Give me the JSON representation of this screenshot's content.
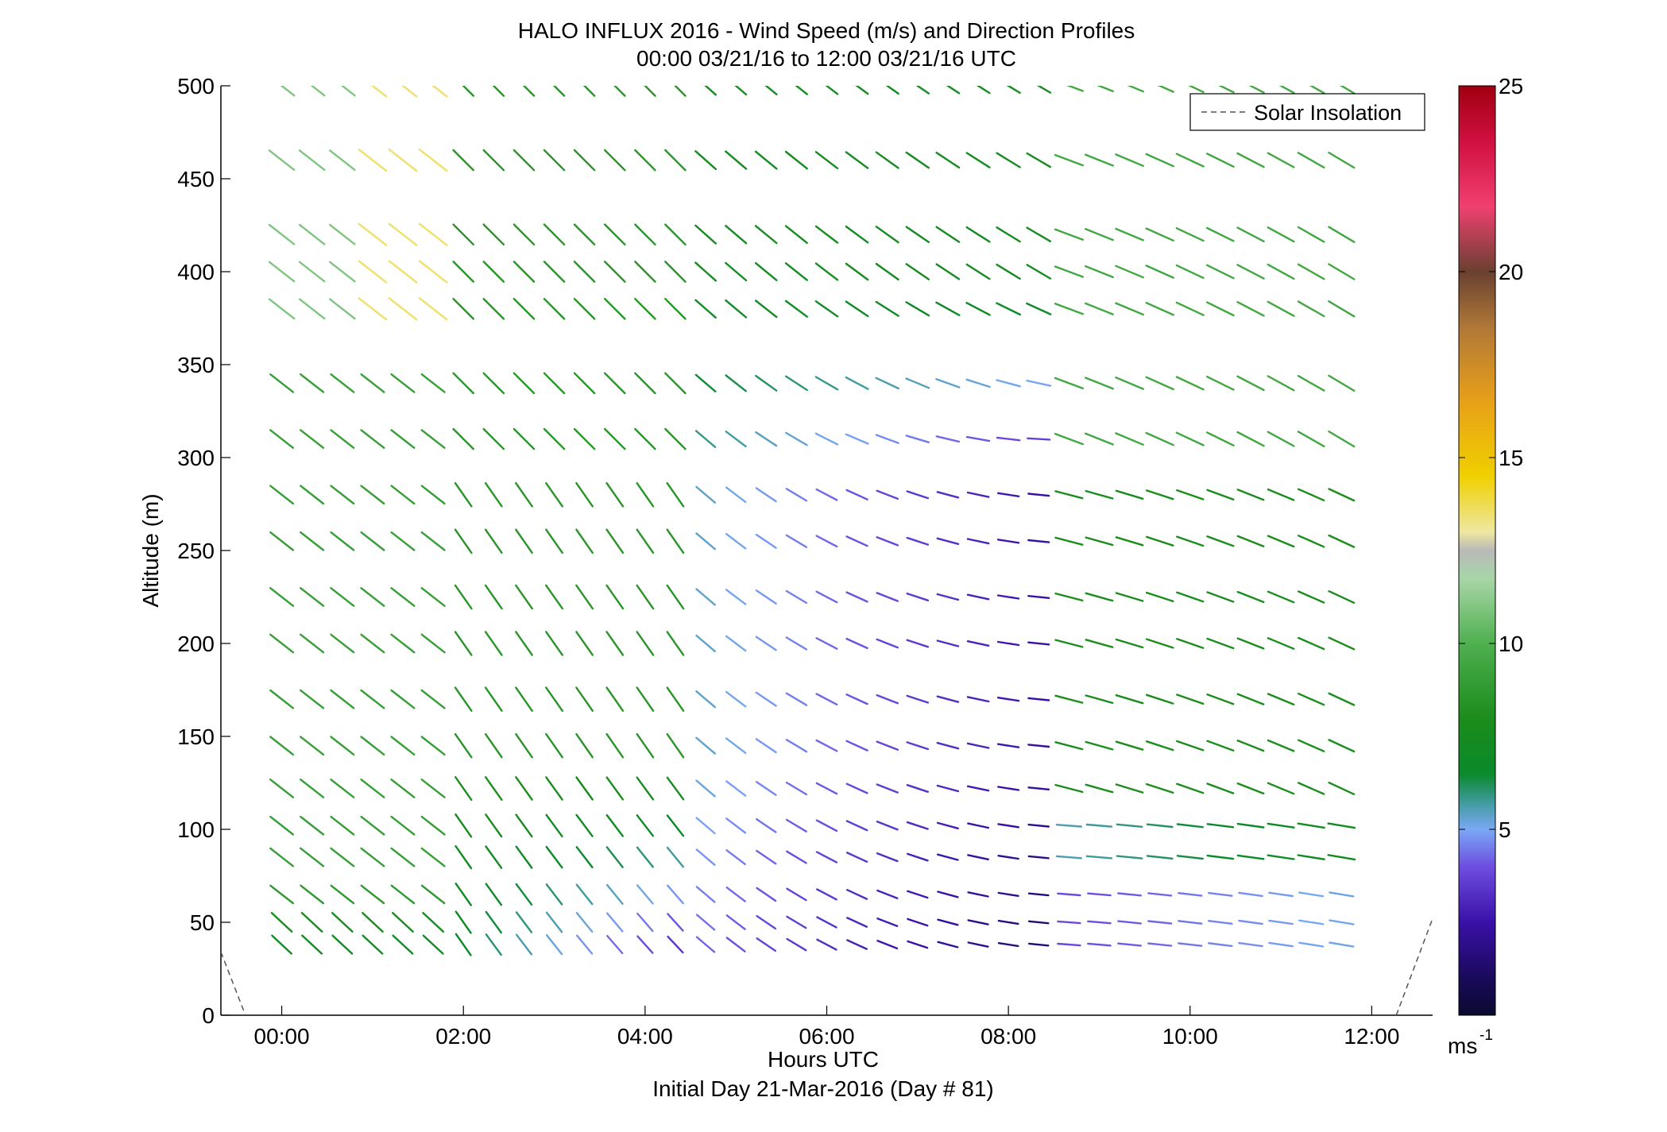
{
  "chart_data": {
    "type": "wind-barb-profile",
    "title": "HALO INFLUX 2016 - Wind Speed (m/s) and Direction Profiles",
    "subtitle": "00:00 03/21/16 to 12:00 03/21/16  UTC",
    "xlabel": "Hours UTC",
    "xlabel2": "Initial Day 21-Mar-2016 (Day # 81)",
    "ylabel": "Altitude (m)",
    "xlim": [
      -0.67,
      12.67
    ],
    "ylim": [
      0,
      500
    ],
    "x_ticks": [
      0,
      2,
      4,
      6,
      8,
      10,
      12
    ],
    "x_tick_labels": [
      "00:00",
      "02:00",
      "04:00",
      "06:00",
      "08:00",
      "10:00",
      "12:00"
    ],
    "y_ticks": [
      0,
      50,
      100,
      150,
      200,
      250,
      300,
      350,
      400,
      450,
      500
    ],
    "y_tick_labels": [
      "0",
      "50",
      "100",
      "150",
      "200",
      "250",
      "300",
      "350",
      "400",
      "450",
      "500"
    ],
    "colorbar": {
      "range": [
        0,
        25
      ],
      "ticks": [
        5,
        10,
        15,
        20,
        25
      ],
      "tick_labels": [
        "5",
        "10",
        "15",
        "20",
        "25"
      ],
      "unit_label": "ms",
      "unit_exponent": "-1"
    },
    "legend": {
      "entries": [
        "Solar Insolation"
      ],
      "placement": "top-right"
    },
    "series_names": [
      "Solar Insolation"
    ],
    "times_hours": [
      0,
      0.333,
      0.667,
      1,
      1.333,
      1.667,
      2,
      2.333,
      2.667,
      3,
      3.333,
      3.667,
      4,
      4.333,
      4.667,
      5,
      5.333,
      5.667,
      6,
      6.333,
      6.667,
      7,
      7.333,
      7.667,
      8,
      8.333,
      8.667,
      9,
      9.333,
      9.667,
      10,
      10.333,
      10.667,
      11,
      11.333,
      11.667
    ],
    "altitudes_m": [
      38,
      50,
      65,
      85,
      102,
      122,
      145,
      170,
      200,
      225,
      255,
      280,
      310,
      340,
      380,
      400,
      420,
      460,
      500
    ],
    "solar_insolation": {
      "left": [
        [
          -0.67,
          34
        ],
        [
          -0.4,
          0
        ]
      ],
      "right": [
        [
          12.27,
          0
        ],
        [
          12.67,
          52
        ]
      ]
    }
  }
}
